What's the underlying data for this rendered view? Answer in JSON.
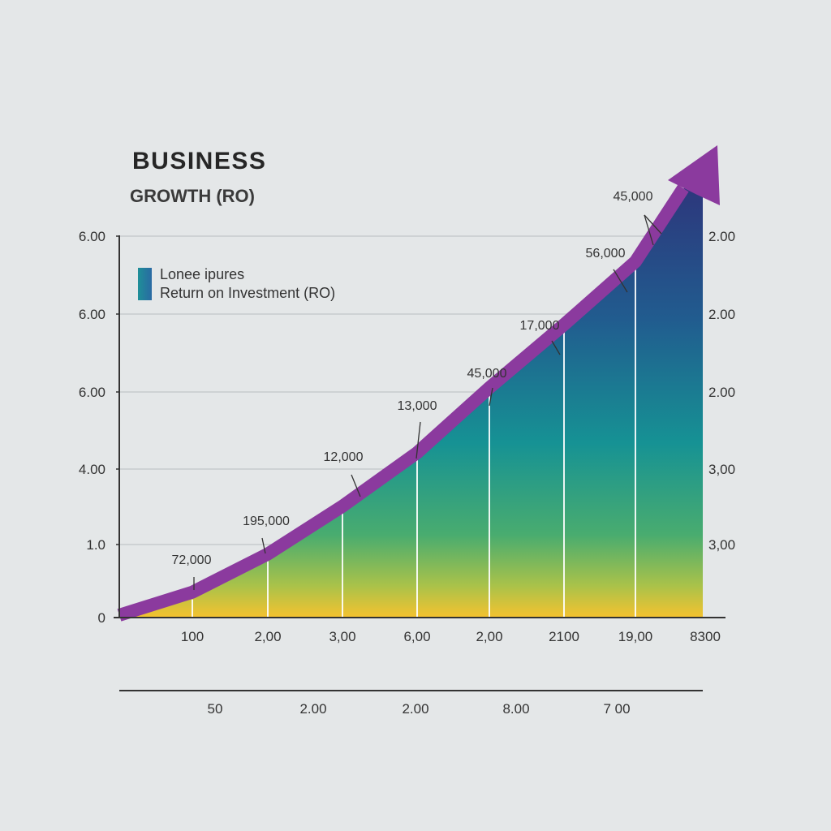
{
  "chart_data": {
    "type": "area",
    "title": "BUSINESS",
    "subtitle": "GROWTH (RO)",
    "legend": {
      "placement": "top-left",
      "entries": [
        "Lonee ipures",
        "Return on Investment (RO)"
      ]
    },
    "x_tick_labels": [
      "100",
      "2,00",
      "3,00",
      "6,00",
      "2,00",
      "2100",
      "19,00",
      "8300"
    ],
    "x_secondary_tick_labels": [
      "50",
      "2.00",
      "2.00",
      "8.00",
      "7 00"
    ],
    "y_left_tick_labels": [
      "0",
      "1.0",
      "4.00",
      "6.00",
      "6.00",
      "6.00"
    ],
    "y_right_tick_labels": [
      "3,00",
      "3,00",
      "2.00",
      "2.00",
      "2.00"
    ],
    "series": [
      {
        "name": "Return on Investment (RO)",
        "values": [
          0,
          0.6,
          1.6,
          2.85,
          4.25,
          5.95,
          7.6,
          9.25,
          12.0
        ]
      }
    ],
    "data_labels": [
      "72,000",
      "195,000",
      "12,000",
      "13,000",
      "45,000",
      "17,000",
      "56,000",
      "45,000"
    ],
    "ylim": [
      0,
      10
    ],
    "grid": true,
    "colors": {
      "line": "#8b3a9e",
      "area_top": "#35347a",
      "area_mid": "#1a8e95",
      "area_low": "#3aa57a",
      "area_bottom": "#f2c230",
      "background": "#e4e7e8"
    }
  }
}
